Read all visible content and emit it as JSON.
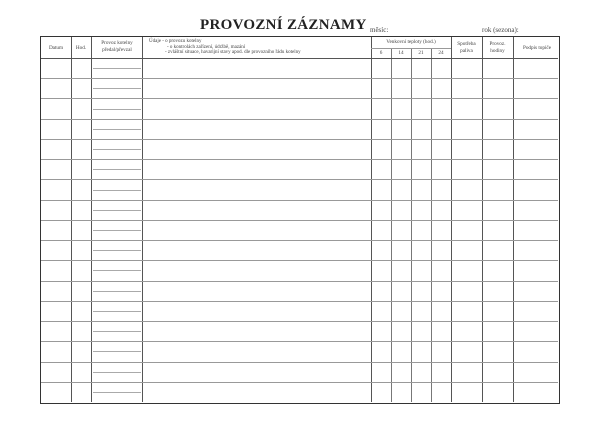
{
  "title": "PROVOZNÍ ZÁZNAMY",
  "month_label": "měsíc:",
  "year_label": "rok (sezona):",
  "columns": {
    "date": "Datum",
    "hour": "Hod.",
    "boiler_handover": "Provoz kotelny předal/převzal",
    "data_lines": [
      "Údaje  - o provozu kotelny",
      "- o kontrolách zařízení, údržbě, mazání",
      "- zvláštní situace, havarijní stavy apod. dle provozního řádu kotelny"
    ],
    "outdoor_temps": "Venkovní teploty (hod.)",
    "temp_hours": [
      "6",
      "14",
      "21",
      "24"
    ],
    "fuel": "Spotřeba paliva",
    "op_hours": "Provoz. hodiny",
    "signature": "Podpis topiče"
  }
}
